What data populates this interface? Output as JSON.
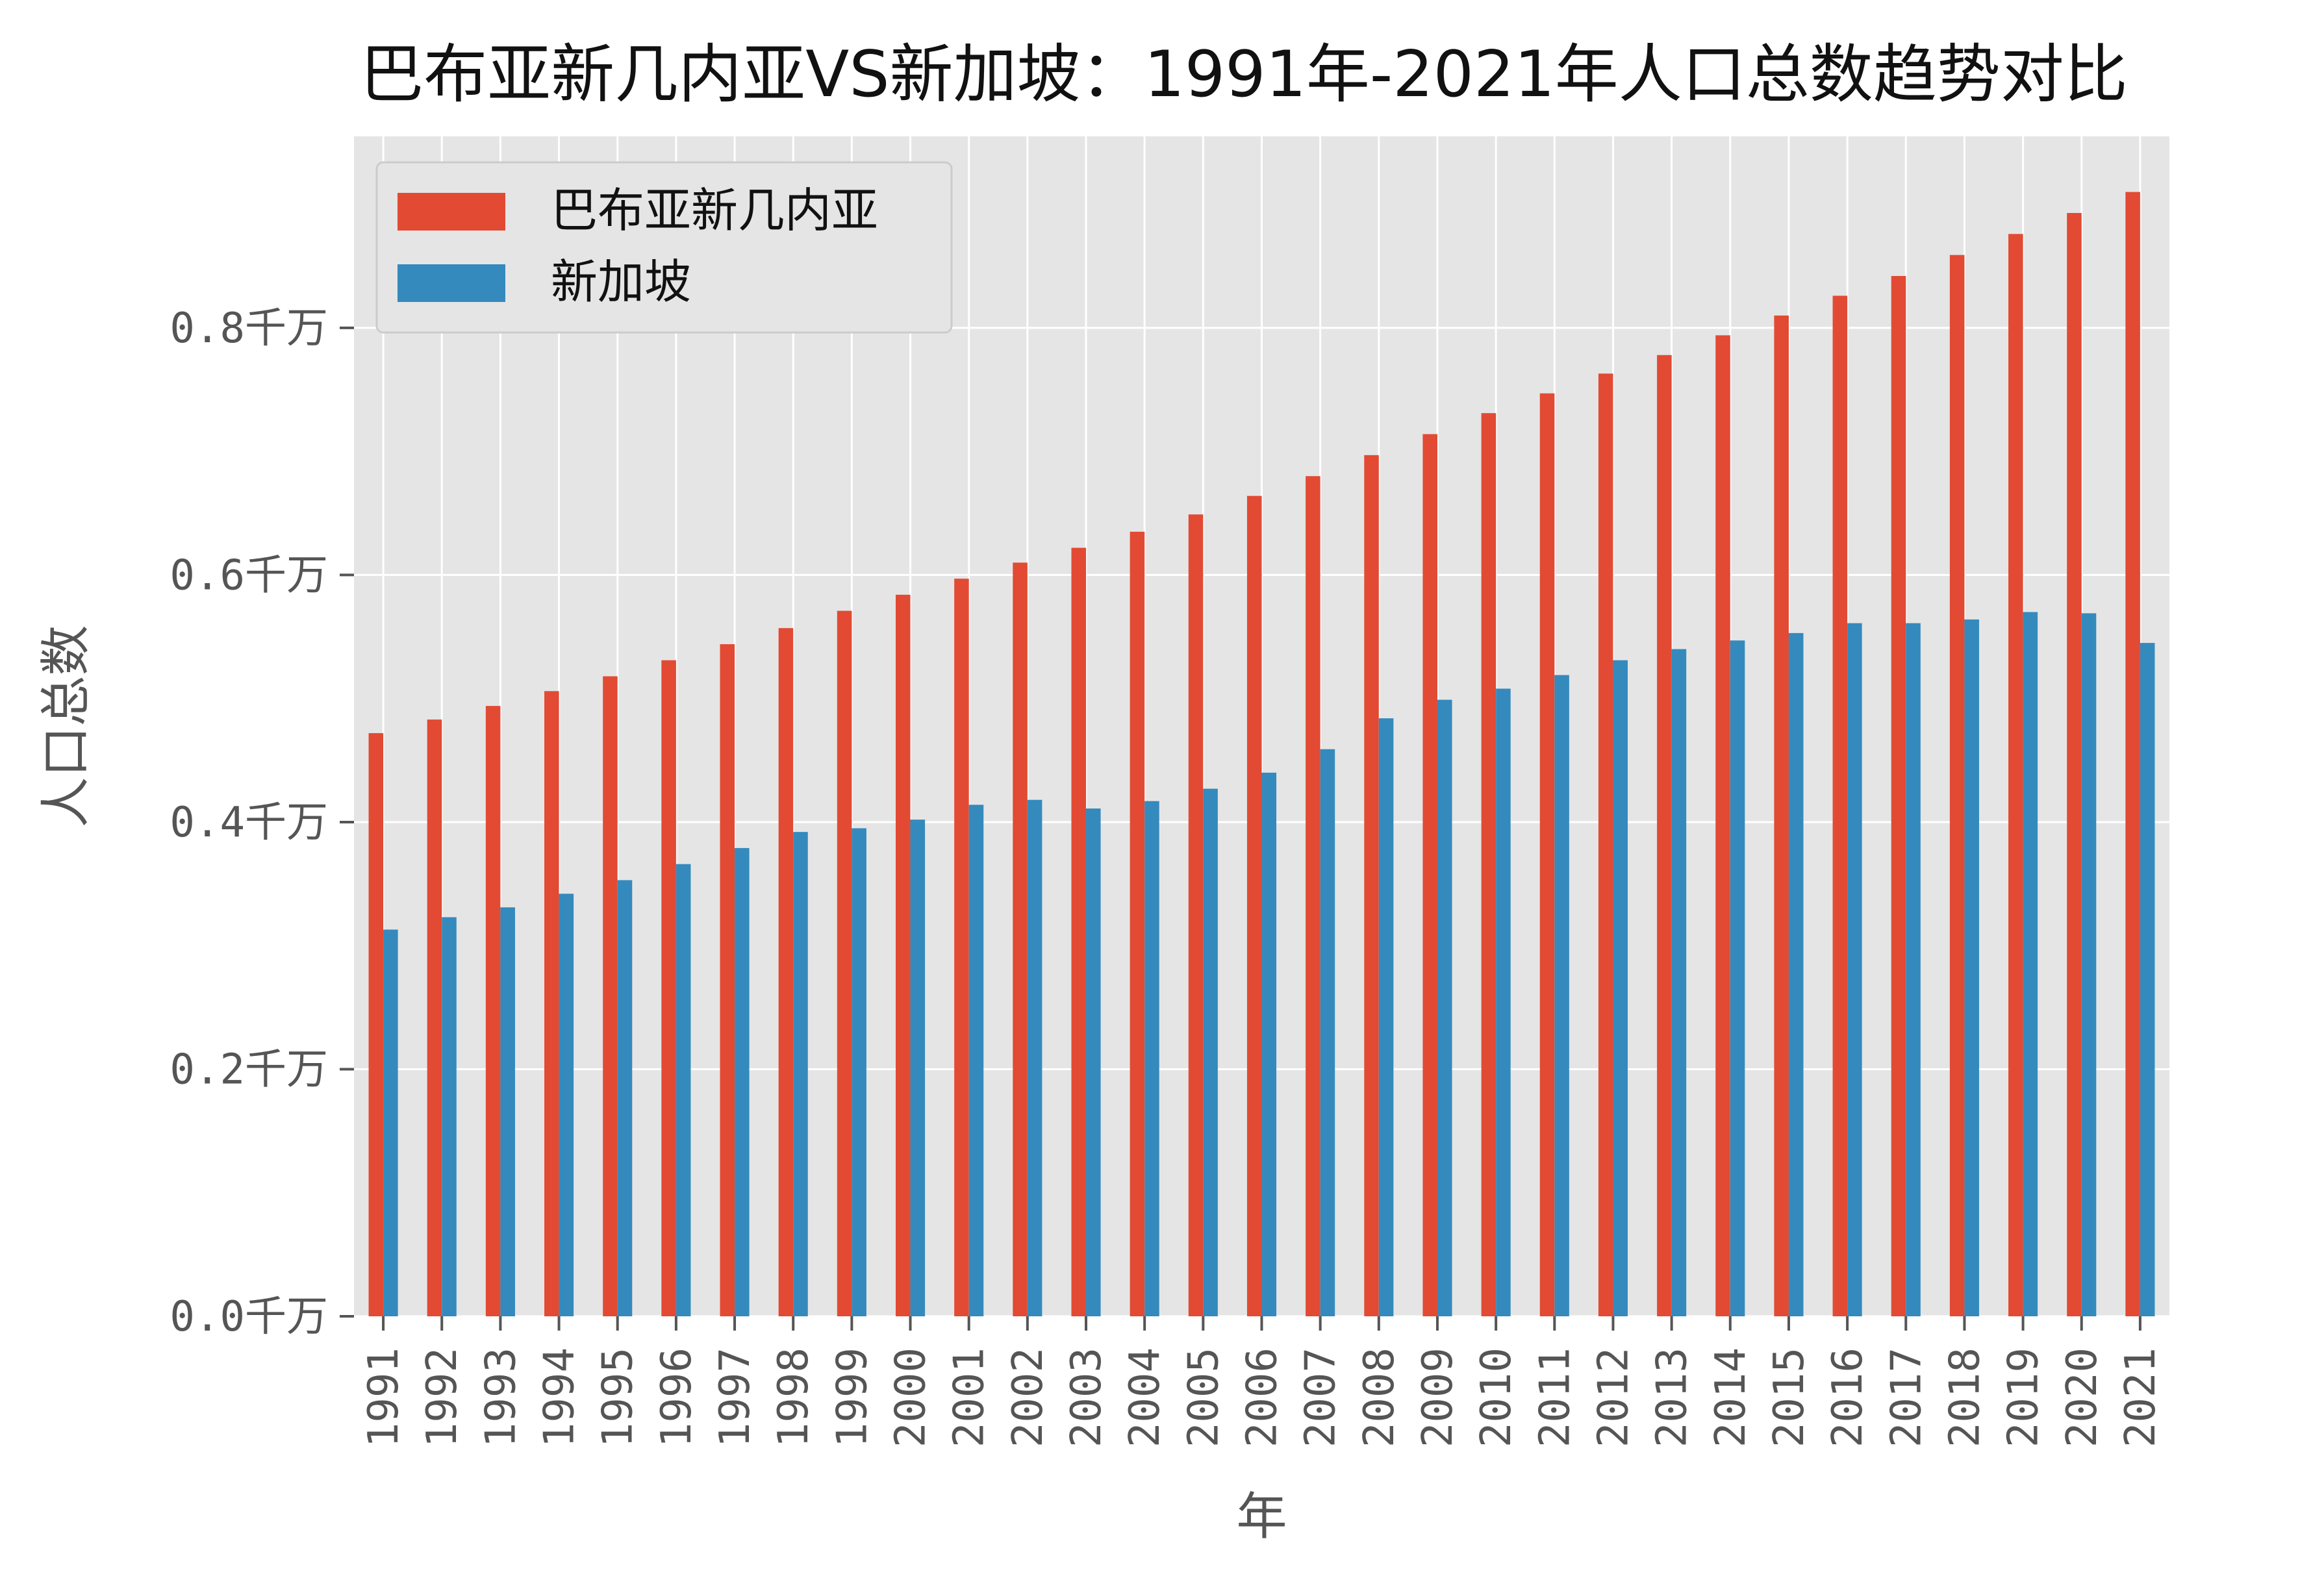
{
  "chart_data": {
    "type": "bar",
    "title": "巴布亚新几内亚VS新加坡：1991年-2021年人口总数趋势对比",
    "xlabel": "年",
    "ylabel": "人口总数",
    "categories": [
      "1991",
      "1992",
      "1993",
      "1994",
      "1995",
      "1996",
      "1997",
      "1998",
      "1999",
      "2000",
      "2001",
      "2002",
      "2003",
      "2004",
      "2005",
      "2006",
      "2007",
      "2008",
      "2009",
      "2010",
      "2011",
      "2012",
      "2013",
      "2014",
      "2015",
      "2016",
      "2017",
      "2018",
      "2019",
      "2020",
      "2021"
    ],
    "series": [
      {
        "name": "巴布亚新几内亚",
        "color": "#E24A33",
        "values": [
          0.472,
          0.483,
          0.494,
          0.506,
          0.518,
          0.531,
          0.544,
          0.557,
          0.571,
          0.584,
          0.597,
          0.61,
          0.622,
          0.635,
          0.649,
          0.664,
          0.68,
          0.697,
          0.714,
          0.731,
          0.747,
          0.763,
          0.778,
          0.794,
          0.81,
          0.826,
          0.842,
          0.859,
          0.876,
          0.893,
          0.91
        ]
      },
      {
        "name": "新加坡",
        "color": "#348ABD",
        "values": [
          0.313,
          0.323,
          0.331,
          0.342,
          0.353,
          0.366,
          0.379,
          0.392,
          0.395,
          0.402,
          0.414,
          0.418,
          0.411,
          0.417,
          0.427,
          0.44,
          0.459,
          0.484,
          0.499,
          0.508,
          0.519,
          0.531,
          0.54,
          0.547,
          0.553,
          0.561,
          0.561,
          0.564,
          0.57,
          0.569,
          0.545
        ]
      }
    ],
    "yticks": [
      0.0,
      0.2,
      0.4,
      0.6,
      0.8
    ],
    "ytick_labels": [
      "0.0千万",
      "0.2千万",
      "0.4千万",
      "0.6千万",
      "0.8千万"
    ],
    "ylim": [
      0,
      0.955
    ],
    "grid": true,
    "legend_position": "top-left",
    "colors": {
      "background": "#E5E5E5",
      "grid": "#FFFFFF",
      "text": "#555555"
    }
  }
}
